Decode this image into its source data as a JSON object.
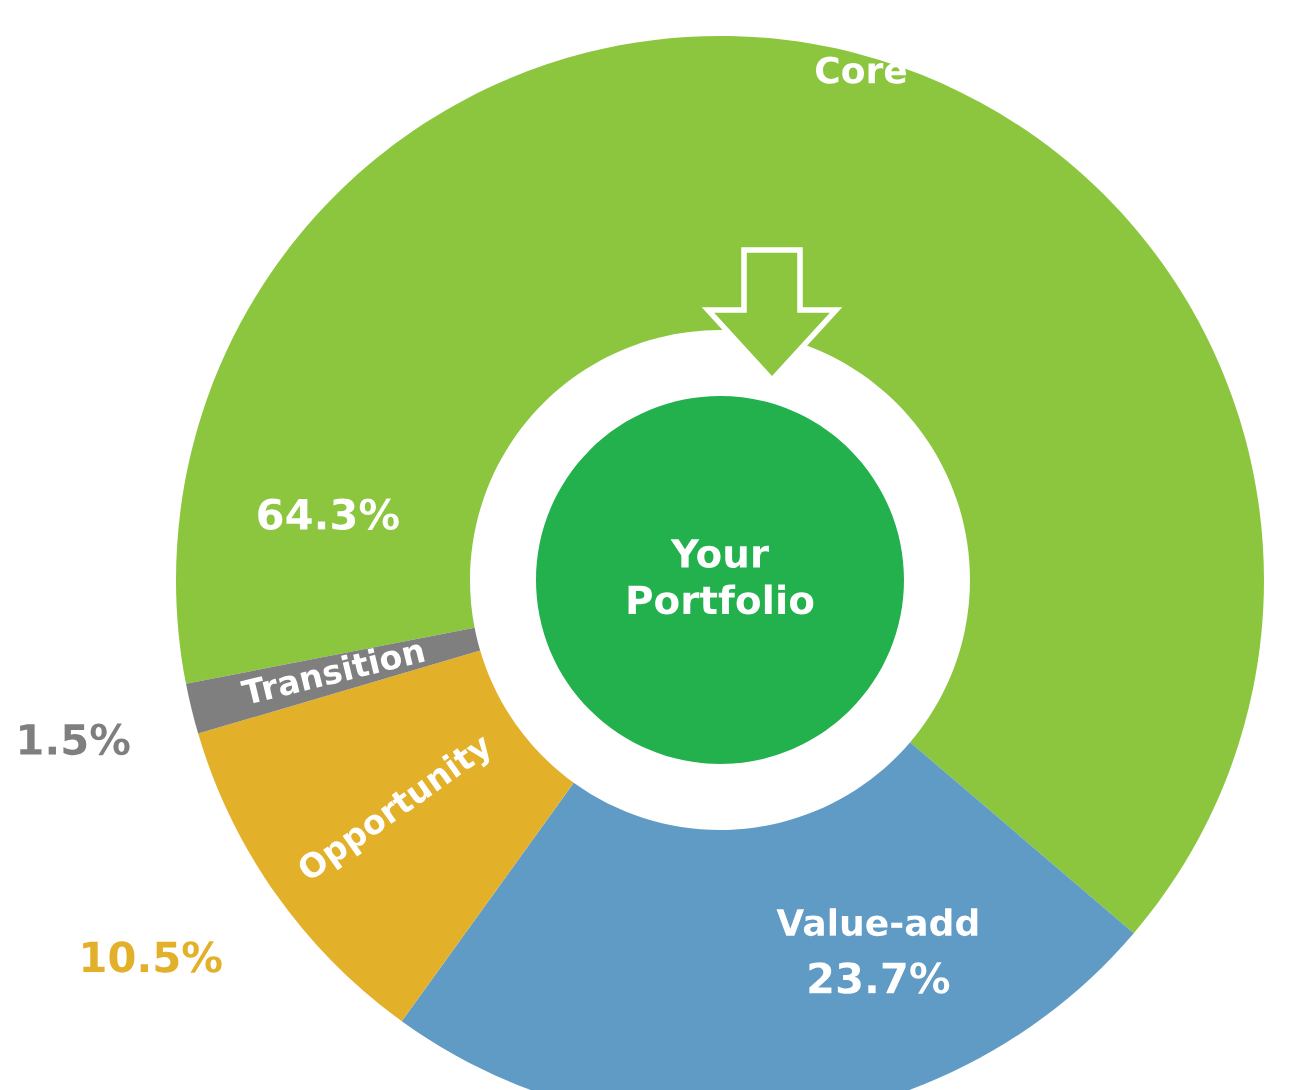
{
  "chart_data": {
    "type": "donut",
    "categories": [
      "Core",
      "Value-add",
      "Opportunity",
      "Transition"
    ],
    "values": [
      64.3,
      23.7,
      10.5,
      1.5
    ],
    "colors": [
      "#8cc63f",
      "#5f9bc4",
      "#e3b02a",
      "#7f7f7f"
    ],
    "value_labels": [
      "64.3%",
      "23.7%",
      "10.5%",
      "1.5%"
    ],
    "annotations": [
      "Your Portfolio"
    ]
  }
}
